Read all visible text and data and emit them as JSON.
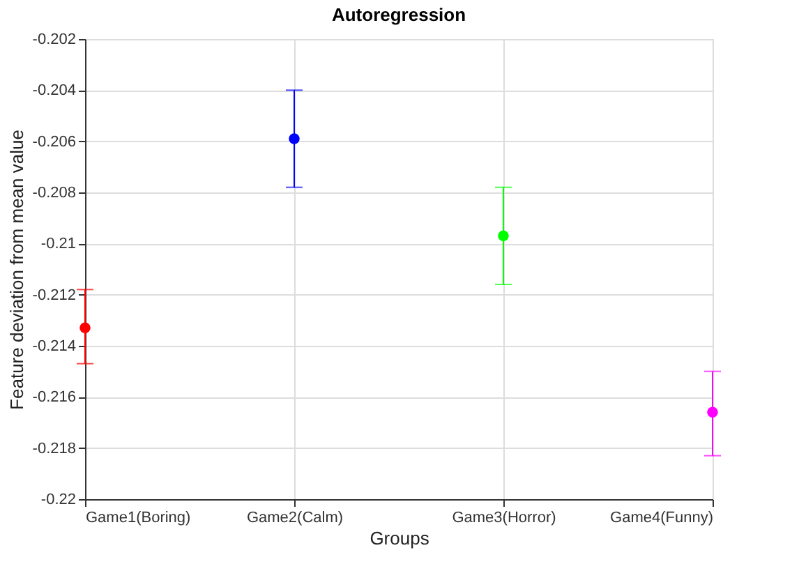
{
  "chart_data": {
    "type": "scatter",
    "title": "Autoregression",
    "xlabel": "Groups",
    "ylabel": "Feature deviation from mean value",
    "categories": [
      "Game1(Boring)",
      "Game2(Calm)",
      "Game3(Horror)",
      "Game4(Funny)"
    ],
    "values": [
      -0.2133,
      -0.2059,
      -0.2097,
      -0.2166
    ],
    "errors": [
      [
        -0.2147,
        -0.2118
      ],
      [
        -0.2078,
        -0.204
      ],
      [
        -0.2116,
        -0.2078
      ],
      [
        -0.2183,
        -0.215
      ]
    ],
    "colors": [
      "#ff0000",
      "#0000ff",
      "#00ff00",
      "#ff00ff"
    ],
    "ylim": [
      -0.22,
      -0.202
    ],
    "yticks": [
      -0.22,
      -0.218,
      -0.216,
      -0.214,
      -0.212,
      -0.21,
      -0.208,
      -0.206,
      -0.204,
      -0.202
    ],
    "grid": true,
    "marker": "circle",
    "legend": false
  }
}
